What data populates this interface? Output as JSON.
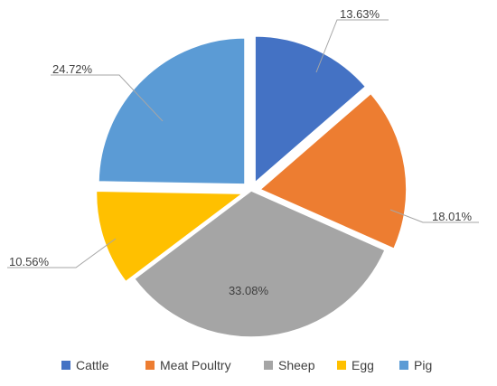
{
  "chart_data": {
    "type": "pie",
    "title": "",
    "categories": [
      "Cattle",
      "Meat Poultry",
      "Sheep",
      "Egg",
      "Pig"
    ],
    "values": [
      13.63,
      18.01,
      33.08,
      10.56,
      24.72
    ],
    "labels": [
      "13.63%",
      "18.01%",
      "33.08%",
      "10.56%",
      "24.72%"
    ],
    "colors": [
      "#4472C4",
      "#ED7D31",
      "#A5A5A5",
      "#FFC000",
      "#5B9BD5"
    ],
    "exploded": true,
    "legend_position": "bottom"
  }
}
